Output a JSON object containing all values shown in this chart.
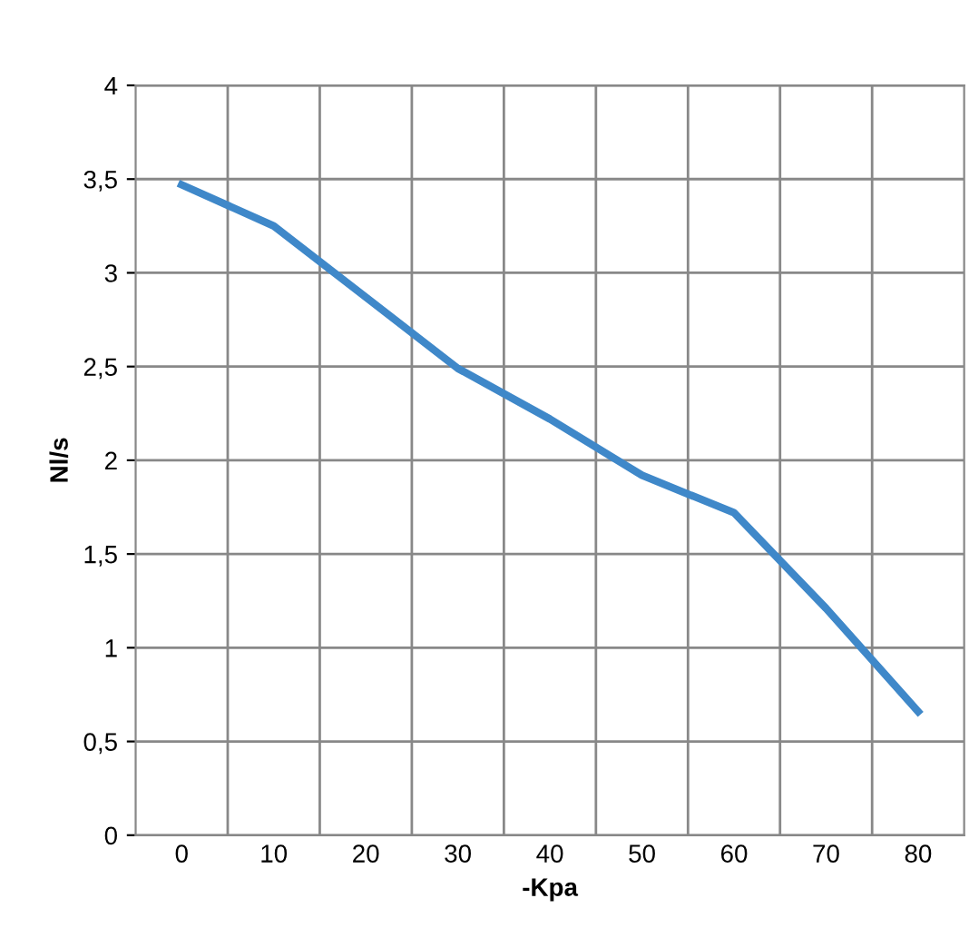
{
  "chart_data": {
    "type": "line",
    "xlabel": "-Kpa",
    "ylabel": "Nl/s",
    "categories": [
      "0",
      "10",
      "20",
      "30",
      "40",
      "50",
      "60",
      "70",
      "80"
    ],
    "series": [
      {
        "color": "#3f88c9",
        "values": [
          3.47,
          3.25,
          2.87,
          2.49,
          2.22,
          1.92,
          1.72,
          1.21,
          0.66
        ]
      }
    ],
    "ylim": [
      0,
      4
    ],
    "yticks": [
      0,
      {
        "value": 0.5,
        "label": "0,5"
      },
      1,
      {
        "value": 1.5,
        "label": "1,5"
      },
      2,
      {
        "value": 2.5,
        "label": "2,5"
      },
      3,
      {
        "value": 3.5,
        "label": "3,5"
      },
      4
    ],
    "grid": true,
    "legend": false,
    "marker": "none",
    "line_style": "solid"
  }
}
